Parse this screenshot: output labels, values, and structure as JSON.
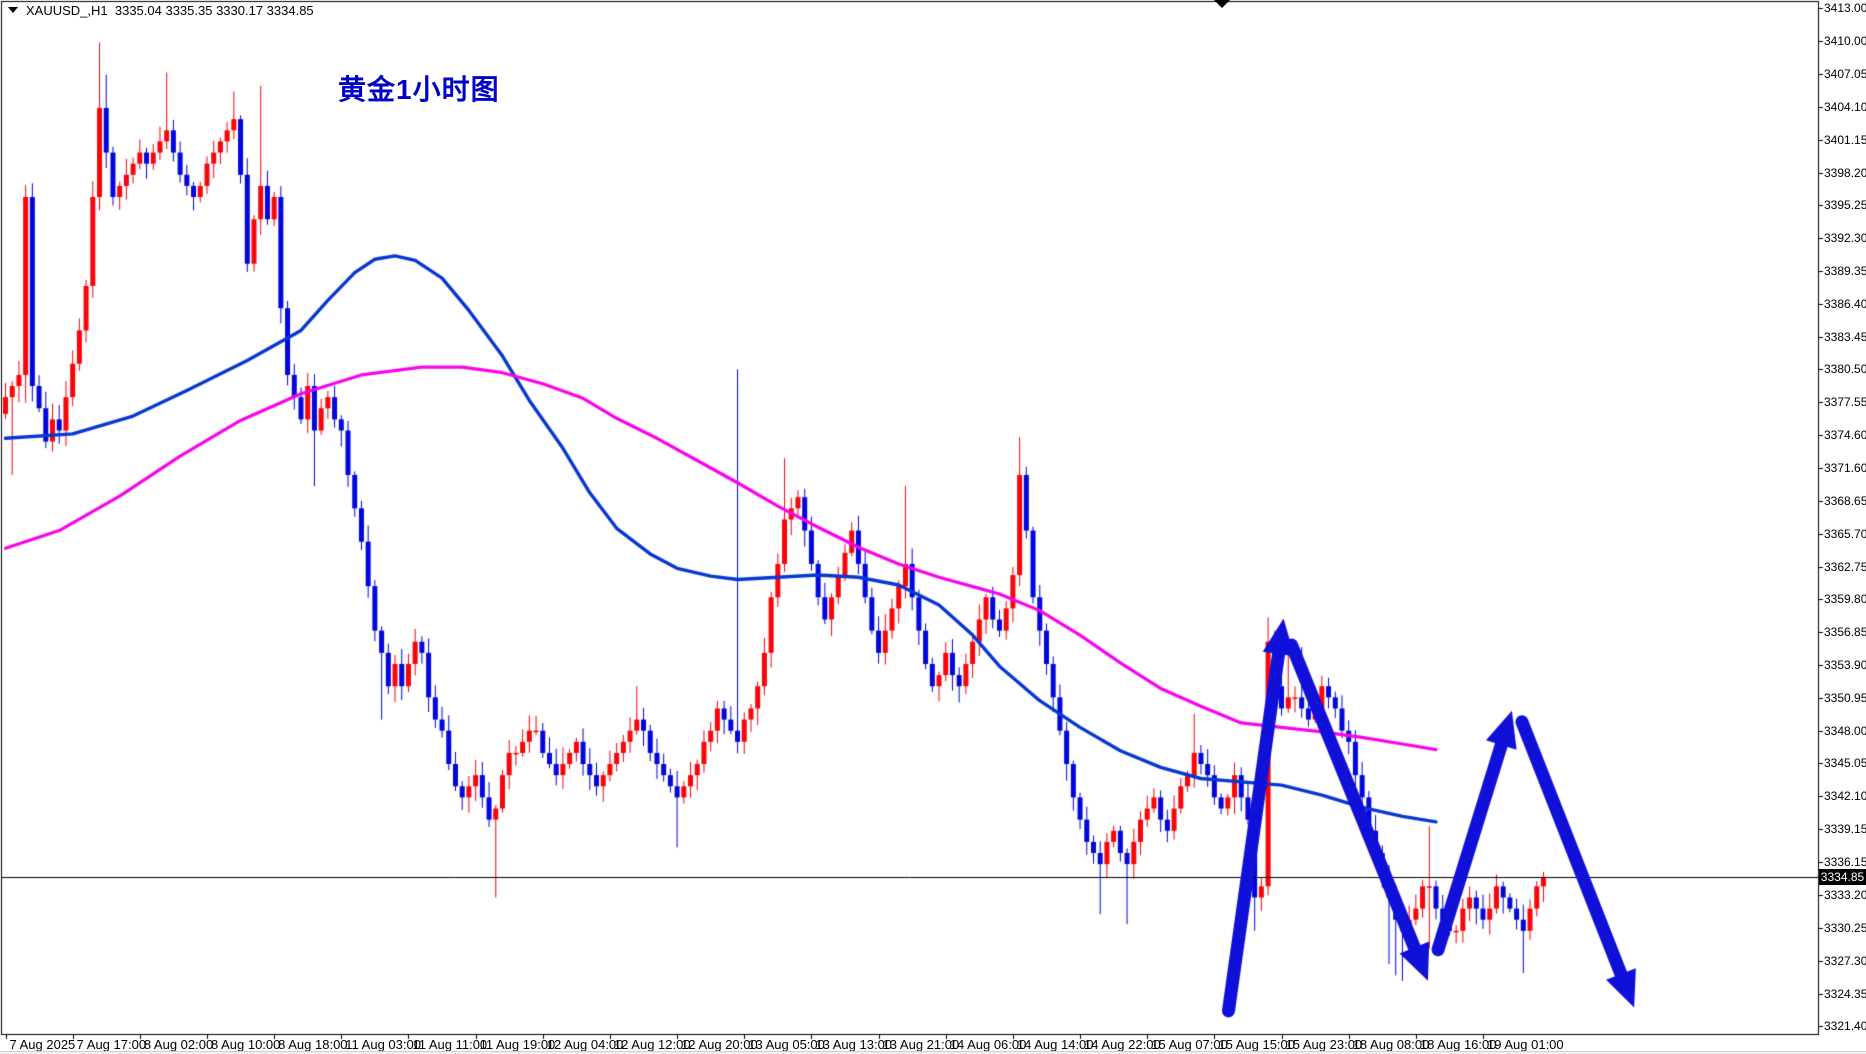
{
  "info_bar": {
    "symbol_period": "XAUUSD_,H1",
    "ohlc_text": "XAUUSD_,H1  3335.04 3335.35 3330.17 3334.85",
    "open": "3335.04",
    "high": "3335.35",
    "low": "3330.17",
    "close": "3334.85"
  },
  "title_annotation": {
    "text": "黄金1小时图",
    "color": "#0202c6"
  },
  "colors": {
    "background": "#ffffff",
    "frame": "#000000",
    "bull_candle": "#f90509",
    "bear_candle": "#0106dc",
    "ma_blue": "#0638d2",
    "ma_magenta": "#f705ec",
    "arrow_blue": "#1010d8",
    "axis_text": "#000000",
    "price_line": "#000000",
    "badge_bg": "#000000",
    "badge_text": "#ffffff"
  },
  "y_axis": {
    "labels": [
      "3413.00",
      "3410.00",
      "3407.05",
      "3404.10",
      "3401.15",
      "3398.20",
      "3395.25",
      "3392.30",
      "3389.35",
      "3386.40",
      "3383.45",
      "3380.50",
      "3377.55",
      "3374.60",
      "3371.60",
      "3368.65",
      "3365.70",
      "3362.75",
      "3359.80",
      "3356.85",
      "3353.90",
      "3350.95",
      "3348.00",
      "3345.05",
      "3342.10",
      "3339.15",
      "3336.15",
      "3333.20",
      "3330.25",
      "3327.30",
      "3324.35",
      "3321.40"
    ],
    "current_price": "3334.85"
  },
  "x_axis": {
    "labels": [
      "7 Aug 2025",
      "7 Aug 17:00",
      "8 Aug 02:00",
      "8 Aug 10:00",
      "8 Aug 18:00",
      "11 Aug 03:00",
      "11 Aug 11:00",
      "11 Aug 19:00",
      "12 Aug 04:00",
      "12 Aug 12:00",
      "12 Aug 20:00",
      "13 Aug 05:00",
      "13 Aug 13:00",
      "13 Aug 21:00",
      "14 Aug 06:00",
      "14 Aug 14:00",
      "14 Aug 22:00",
      "15 Aug 07:00",
      "15 Aug 15:00",
      "15 Aug 23:00",
      "18 Aug 08:00",
      "18 Aug 16:00",
      "19 Aug 01:00"
    ],
    "candles_per_label": 10
  },
  "chart_data": {
    "type": "candlestick",
    "symbol": "XAUUSD",
    "timeframe": "H1",
    "title": "黄金1小时图",
    "current_price": 3334.85,
    "y_range": {
      "top": 3413.63,
      "bottom": 3320.72
    },
    "x_range_labels": {
      "first": "7 Aug 2025",
      "last": "19 Aug 01:00"
    },
    "closes": [
      3378,
      3379,
      3380,
      3396,
      3379,
      3377,
      3374,
      3376,
      3375,
      3378,
      3381,
      3384,
      3388,
      3396,
      3404,
      3400,
      3396,
      3397,
      3398,
      3399,
      3400,
      3399,
      3400,
      3401,
      3402,
      3400,
      3398,
      3397,
      3396,
      3397,
      3399,
      3400,
      3401,
      3402,
      3403,
      3398,
      3390,
      3394,
      3397,
      3394,
      3396,
      3386,
      3380,
      3378,
      3376,
      3379,
      3375,
      3377,
      3378,
      3376,
      3375,
      3371,
      3368,
      3365,
      3361,
      3357,
      3355,
      3352,
      3354,
      3352,
      3354,
      3356,
      3355,
      3351,
      3349,
      3348,
      3345,
      3343,
      3342,
      3343,
      3344,
      3342,
      3340,
      3341,
      3344,
      3346,
      3346,
      3347,
      3348,
      3348,
      3346,
      3345,
      3344,
      3345,
      3346,
      3347,
      3345,
      3344,
      3343,
      3344,
      3345,
      3346,
      3347,
      3348,
      3349,
      3348,
      3346,
      3345,
      3344,
      3343,
      3342,
      3343,
      3344,
      3345,
      3347,
      3348,
      3350,
      3349,
      3348,
      3347,
      3349,
      3350,
      3352,
      3355,
      3360,
      3363,
      3367,
      3368,
      3369,
      3366,
      3363,
      3360,
      3358,
      3360,
      3362,
      3364,
      3366,
      3363,
      3360,
      3357,
      3355,
      3357,
      3359,
      3361,
      3363,
      3360,
      3357,
      3354,
      3352,
      3353,
      3355,
      3353,
      3352,
      3354,
      3356,
      3358,
      3360,
      3358,
      3357,
      3359,
      3362,
      3371,
      3366,
      3360,
      3357,
      3354,
      3351,
      3348,
      3345,
      3342,
      3340,
      3338,
      3337,
      3336,
      3338,
      3339,
      3337,
      3336,
      3338,
      3340,
      3341,
      3342,
      3340,
      3339,
      3341,
      3343,
      3344,
      3346,
      3345,
      3344,
      3342,
      3341,
      3342,
      3344,
      3342,
      3340,
      3333,
      3334,
      3356,
      3352,
      3350,
      3351,
      3351,
      3350,
      3349,
      3350,
      3352,
      3351,
      3350,
      3348,
      3347,
      3344,
      3342,
      3339,
      3337,
      3335,
      3333,
      3331,
      3330,
      3331,
      3332,
      3334,
      3334,
      3332,
      3331,
      3330,
      3330,
      3332,
      3333,
      3332,
      3331,
      3332,
      3334,
      3333,
      3332,
      3331,
      3330,
      3332,
      3334,
      3334.85
    ],
    "first_open": 3376.5,
    "wick_overrides": {
      "1": {
        "low": 3371
      },
      "3": {
        "low": 3377.5
      },
      "14": {
        "high": 3409.9
      },
      "15": {
        "high": 3407
      },
      "24": {
        "high": 3407.2
      },
      "34": {
        "high": 3405.5
      },
      "38": {
        "high": 3406
      },
      "46": {
        "low": 3370
      },
      "56": {
        "low": 3349
      },
      "73": {
        "low": 3333
      },
      "94": {
        "high": 3352
      },
      "100": {
        "low": 3337.5
      },
      "109": {
        "high": 3380.5
      },
      "116": {
        "high": 3372.5
      },
      "134": {
        "high": 3370
      },
      "151": {
        "high": 3374.4
      },
      "163": {
        "low": 3331.5
      },
      "167": {
        "low": 3330.6
      },
      "177": {
        "high": 3349.5
      },
      "186": {
        "low": 3330
      },
      "188": {
        "high": 3358.2
      },
      "189": {
        "high": 3357
      },
      "191": {
        "high": 3356
      },
      "193": {
        "high": 3355.5
      },
      "206": {
        "low": 3327
      },
      "207": {
        "low": 3326
      },
      "208": {
        "low": 3325.5
      },
      "212": {
        "high": 3339.4,
        "low": 3328.4
      },
      "226": {
        "low": 3326.2
      }
    },
    "moving_averages": [
      {
        "name": "ma-blue",
        "color_key": "ma_blue",
        "width": 3.4,
        "points": [
          [
            0,
            3374.3
          ],
          [
            10,
            3374.7
          ],
          [
            19,
            3376.3
          ],
          [
            27,
            3378.6
          ],
          [
            36,
            3381.3
          ],
          [
            44,
            3384.0
          ],
          [
            48,
            3386.7
          ],
          [
            52,
            3389.2
          ],
          [
            55,
            3390.4
          ],
          [
            58,
            3390.7
          ],
          [
            61,
            3390.3
          ],
          [
            65,
            3388.7
          ],
          [
            69,
            3385.8
          ],
          [
            74,
            3381.7
          ],
          [
            78,
            3377.7
          ],
          [
            83,
            3373.4
          ],
          [
            87,
            3369.4
          ],
          [
            91,
            3366.2
          ],
          [
            96,
            3363.9
          ],
          [
            100,
            3362.6
          ],
          [
            105,
            3361.9
          ],
          [
            109,
            3361.6
          ],
          [
            115,
            3361.8
          ],
          [
            121,
            3362.0
          ],
          [
            127,
            3361.8
          ],
          [
            133,
            3361.1
          ],
          [
            139,
            3359.3
          ],
          [
            144,
            3356.6
          ],
          [
            148,
            3353.8
          ],
          [
            154,
            3350.7
          ],
          [
            160,
            3348.3
          ],
          [
            166,
            3346.2
          ],
          [
            172,
            3344.7
          ],
          [
            178,
            3343.7
          ],
          [
            184,
            3343.4
          ],
          [
            190,
            3343.1
          ],
          [
            196,
            3342.2
          ],
          [
            202,
            3341.1
          ],
          [
            208,
            3340.3
          ],
          [
            213,
            3339.8
          ]
        ]
      },
      {
        "name": "ma-magenta",
        "color_key": "ma_magenta",
        "width": 3.2,
        "points": [
          [
            0,
            3364.4
          ],
          [
            8,
            3366.0
          ],
          [
            17,
            3369.1
          ],
          [
            26,
            3372.7
          ],
          [
            35,
            3375.9
          ],
          [
            44,
            3378.3
          ],
          [
            53,
            3380.0
          ],
          [
            62,
            3380.7
          ],
          [
            68,
            3380.7
          ],
          [
            74,
            3380.2
          ],
          [
            80,
            3379.2
          ],
          [
            86,
            3377.9
          ],
          [
            91,
            3376.1
          ],
          [
            97,
            3374.3
          ],
          [
            103,
            3372.3
          ],
          [
            109,
            3370.3
          ],
          [
            115,
            3368.2
          ],
          [
            121,
            3366.3
          ],
          [
            127,
            3364.5
          ],
          [
            133,
            3363.0
          ],
          [
            139,
            3361.8
          ],
          [
            145,
            3360.8
          ],
          [
            148,
            3360.3
          ],
          [
            154,
            3358.8
          ],
          [
            160,
            3356.6
          ],
          [
            166,
            3354.1
          ],
          [
            172,
            3351.8
          ],
          [
            178,
            3350.2
          ],
          [
            184,
            3348.7
          ],
          [
            190,
            3348.3
          ],
          [
            196,
            3347.9
          ],
          [
            202,
            3347.4
          ],
          [
            208,
            3346.8
          ],
          [
            213,
            3346.3
          ]
        ]
      }
    ],
    "forecast_arrows": [
      {
        "direction": "up",
        "from": [
          182.1,
          3322.8
        ],
        "to": [
          190.3,
          3358.1
        ]
      },
      {
        "direction": "down",
        "from": [
          191.5,
          3355.7
        ],
        "to": [
          211.8,
          3325.5
        ]
      },
      {
        "direction": "up",
        "from": [
          213.3,
          3328.3
        ],
        "to": [
          224.3,
          3349.8
        ]
      },
      {
        "direction": "down",
        "from": [
          225.8,
          3348.8
        ],
        "to": [
          242.5,
          3323.1
        ]
      }
    ]
  }
}
